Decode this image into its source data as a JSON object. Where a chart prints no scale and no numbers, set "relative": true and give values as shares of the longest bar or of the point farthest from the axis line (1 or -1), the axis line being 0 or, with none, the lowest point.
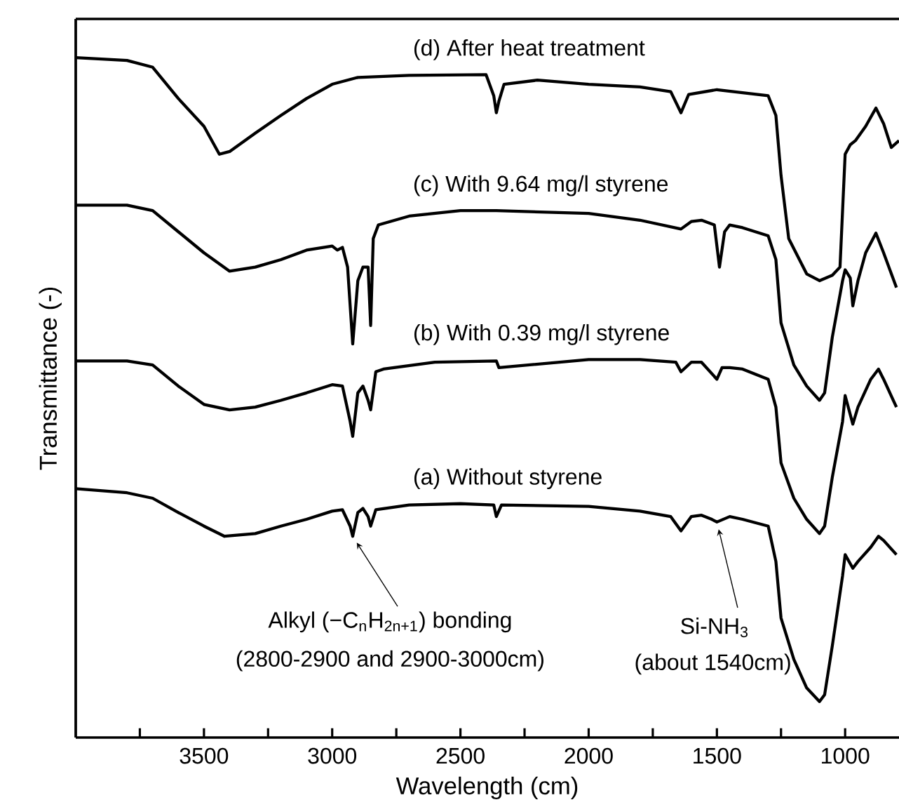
{
  "chart_data": {
    "type": "line",
    "relative": true,
    "xlabel": "Wavelength (cm)",
    "ylabel": "Transmittance (-)",
    "xlim": [
      4000,
      790
    ],
    "xticks": [
      {
        "value": 3750,
        "label": null
      },
      3500,
      {
        "value": 3250,
        "label": null
      },
      3000,
      {
        "value": 2750,
        "label": null
      },
      2500,
      {
        "value": 2250,
        "label": null
      },
      2000,
      {
        "value": 1750,
        "label": null
      },
      1500,
      {
        "value": 1250,
        "label": null
      },
      1000
    ],
    "series": [
      {
        "name": "(d) After heat treatment",
        "color": "#000000",
        "x": [
          4000,
          3800,
          3700,
          3600,
          3500,
          3440,
          3400,
          3300,
          3200,
          3100,
          3000,
          2900,
          2700,
          2400,
          2370,
          2360,
          2350,
          2330,
          2200,
          2000,
          1800,
          1680,
          1640,
          1610,
          1500,
          1300,
          1270,
          1250,
          1220,
          1150,
          1100,
          1050,
          1020,
          1000,
          980,
          960,
          920,
          880,
          850,
          820,
          790
        ],
        "values": [
          1.0,
          0.996,
          0.986,
          0.94,
          0.899,
          0.858,
          0.862,
          0.889,
          0.915,
          0.94,
          0.961,
          0.971,
          0.974,
          0.975,
          0.944,
          0.919,
          0.936,
          0.961,
          0.967,
          0.961,
          0.957,
          0.95,
          0.919,
          0.946,
          0.953,
          0.944,
          0.915,
          0.827,
          0.734,
          0.682,
          0.672,
          0.68,
          0.692,
          0.858,
          0.872,
          0.878,
          0.899,
          0.926,
          0.903,
          0.868,
          0.878
        ]
      },
      {
        "name": "(c) With 9.64 mg/l styrene",
        "color": "#000000",
        "x": [
          4000,
          3800,
          3700,
          3600,
          3500,
          3400,
          3300,
          3200,
          3100,
          3000,
          2980,
          2960,
          2940,
          2920,
          2900,
          2880,
          2860,
          2850,
          2840,
          2820,
          2700,
          2500,
          2360,
          2000,
          1800,
          1640,
          1600,
          1560,
          1510,
          1490,
          1470,
          1450,
          1400,
          1300,
          1270,
          1250,
          1200,
          1150,
          1100,
          1080,
          1050,
          1010,
          1000,
          980,
          970,
          950,
          920,
          880,
          850,
          800
        ],
        "values": [
          0.783,
          0.783,
          0.775,
          0.744,
          0.713,
          0.686,
          0.692,
          0.703,
          0.717,
          0.723,
          0.717,
          0.721,
          0.692,
          0.579,
          0.672,
          0.692,
          0.692,
          0.606,
          0.734,
          0.754,
          0.767,
          0.775,
          0.775,
          0.771,
          0.761,
          0.748,
          0.759,
          0.761,
          0.754,
          0.692,
          0.744,
          0.754,
          0.75,
          0.738,
          0.703,
          0.61,
          0.548,
          0.517,
          0.496,
          0.507,
          0.589,
          0.672,
          0.688,
          0.676,
          0.635,
          0.672,
          0.713,
          0.742,
          0.713,
          0.662
        ]
      },
      {
        "name": "(b) With 0.39 mg/l styrene",
        "color": "#000000",
        "x": [
          4000,
          3800,
          3700,
          3600,
          3500,
          3400,
          3300,
          3200,
          3100,
          3000,
          2960,
          2930,
          2920,
          2900,
          2880,
          2860,
          2850,
          2830,
          2800,
          2600,
          2360,
          2350,
          2000,
          1800,
          1660,
          1640,
          1600,
          1560,
          1500,
          1480,
          1450,
          1400,
          1300,
          1270,
          1250,
          1200,
          1150,
          1100,
          1080,
          1050,
          1010,
          1000,
          970,
          950,
          900,
          870,
          850,
          800
        ],
        "values": [
          0.554,
          0.554,
          0.548,
          0.517,
          0.49,
          0.482,
          0.486,
          0.496,
          0.507,
          0.519,
          0.517,
          0.465,
          0.443,
          0.507,
          0.517,
          0.496,
          0.482,
          0.538,
          0.542,
          0.552,
          0.554,
          0.544,
          0.556,
          0.556,
          0.552,
          0.538,
          0.552,
          0.552,
          0.527,
          0.544,
          0.544,
          0.542,
          0.527,
          0.486,
          0.404,
          0.352,
          0.321,
          0.3,
          0.311,
          0.383,
          0.465,
          0.503,
          0.461,
          0.486,
          0.527,
          0.542,
          0.527,
          0.486
        ]
      },
      {
        "name": "(a) Without styrene",
        "color": "#000000",
        "x": [
          4000,
          3800,
          3700,
          3600,
          3500,
          3420,
          3300,
          3200,
          3100,
          3000,
          2960,
          2930,
          2920,
          2900,
          2880,
          2860,
          2850,
          2830,
          2700,
          2500,
          2370,
          2360,
          2340,
          2000,
          1800,
          1680,
          1640,
          1600,
          1560,
          1520,
          1500,
          1450,
          1400,
          1300,
          1270,
          1250,
          1200,
          1150,
          1100,
          1080,
          1050,
          1010,
          1000,
          970,
          950,
          900,
          870,
          850,
          800
        ],
        "values": [
          0.366,
          0.36,
          0.352,
          0.331,
          0.311,
          0.296,
          0.3,
          0.311,
          0.321,
          0.333,
          0.335,
          0.311,
          0.296,
          0.331,
          0.337,
          0.325,
          0.311,
          0.335,
          0.342,
          0.344,
          0.342,
          0.325,
          0.342,
          0.34,
          0.333,
          0.325,
          0.304,
          0.325,
          0.327,
          0.321,
          0.317,
          0.325,
          0.321,
          0.311,
          0.259,
          0.176,
          0.115,
          0.073,
          0.053,
          0.063,
          0.135,
          0.238,
          0.269,
          0.249,
          0.259,
          0.28,
          0.296,
          0.29,
          0.269
        ]
      }
    ],
    "annotations": [
      {
        "text": "Alkyl (−C$_{n}$H$_{2n+1}$) bonding",
        "x": 2920,
        "y": 0.296
      },
      "(2800-2900 and 2900-3000cm)",
      {
        "text": "Si-NH$_{3}$",
        "x": 1500,
        "y": 0.317
      },
      "(about 1540cm)"
    ]
  }
}
